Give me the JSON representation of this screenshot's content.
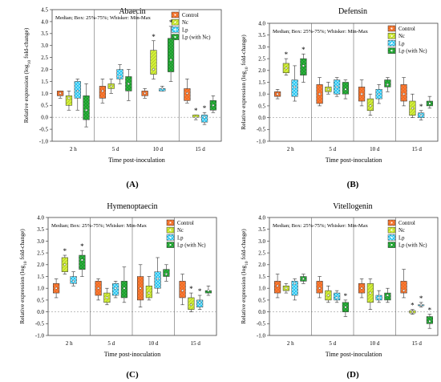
{
  "figure": {
    "background": "#ffffff"
  },
  "chart_data": [
    {
      "type": "box",
      "panel_label": "(A)",
      "title": "Abaecin",
      "annotation": "Median; Box: 25%-75%; Whisker: Min-Max",
      "ylabel_main": "Relative expression (log",
      "ylabel_sub": "10",
      "ylabel_tail": " fold-change)",
      "xlabel": "Time post-inoculation",
      "ylim": [
        -1.0,
        4.5
      ],
      "yticks": [
        "-1.0",
        "-0.5",
        "0.0",
        "0.5",
        "1.0",
        "1.5",
        "2.0",
        "2.5",
        "3.0",
        "3.5",
        "4.0",
        "4.5"
      ],
      "categories": [
        "2 h",
        "5 d",
        "10 d",
        "15 d"
      ],
      "series": [
        {
          "name": "Control",
          "color": "#f26b21",
          "hatch": "dots",
          "boxes": [
            [
              0.8,
              0.9,
              1.0,
              1.1,
              1.1
            ],
            [
              0.6,
              0.8,
              1.1,
              1.3,
              1.6
            ],
            [
              0.8,
              0.9,
              1.0,
              1.1,
              1.2
            ],
            [
              0.6,
              0.7,
              1.0,
              1.2,
              1.6
            ]
          ],
          "sig": [
            false,
            false,
            false,
            false
          ]
        },
        {
          "name": "Nc",
          "color": "#d4f03c",
          "hatch": "diag",
          "boxes": [
            [
              0.3,
              0.5,
              0.8,
              0.9,
              1.1
            ],
            [
              1.0,
              1.2,
              1.3,
              1.4,
              1.6
            ],
            [
              1.6,
              1.8,
              2.0,
              2.8,
              3.2
            ],
            [
              -0.1,
              0.0,
              0.0,
              0.1,
              0.1
            ]
          ],
          "sig": [
            false,
            false,
            true,
            true
          ]
        },
        {
          "name": "Lp",
          "color": "#27c6f2",
          "hatch": "checker",
          "boxes": [
            [
              0.3,
              0.8,
              1.1,
              1.5,
              1.6
            ],
            [
              1.4,
              1.6,
              1.7,
              2.0,
              2.2
            ],
            [
              1.1,
              1.1,
              1.2,
              1.2,
              1.3
            ],
            [
              -0.3,
              -0.2,
              0.0,
              0.1,
              0.2
            ]
          ],
          "sig": [
            false,
            false,
            false,
            true
          ]
        },
        {
          "name": "Lp (with Nc)",
          "color": "#19a02a",
          "hatch": "dots",
          "boxes": [
            [
              -0.4,
              -0.1,
              0.3,
              0.9,
              1.4
            ],
            [
              0.7,
              1.1,
              1.4,
              1.7,
              2.0
            ],
            [
              1.5,
              1.9,
              2.4,
              3.3,
              3.8
            ],
            [
              0.2,
              0.3,
              0.5,
              0.7,
              0.9
            ]
          ],
          "sig": [
            false,
            false,
            true,
            false
          ]
        }
      ]
    },
    {
      "type": "box",
      "panel_label": "(B)",
      "title": "Defensin",
      "annotation": "Median; Box: 25%-75%; Whisker: Min-Max",
      "ylabel_main": "Relative expression (log",
      "ylabel_sub": "10",
      "ylabel_tail": " fold-change)",
      "xlabel": "Time post-inoculation",
      "ylim": [
        -1.0,
        4.0
      ],
      "yticks": [
        "-1.0",
        "-0.5",
        "0.0",
        "0.5",
        "1.0",
        "1.5",
        "2.0",
        "2.5",
        "3.0",
        "3.5",
        "4.0"
      ],
      "categories": [
        "2 h",
        "5 d",
        "10 d",
        "15 d"
      ],
      "series": [
        {
          "name": "Control",
          "color": "#f26b21",
          "hatch": "dots",
          "boxes": [
            [
              0.8,
              0.9,
              1.0,
              1.1,
              1.2
            ],
            [
              0.5,
              0.6,
              1.0,
              1.4,
              1.7
            ],
            [
              0.5,
              0.7,
              1.0,
              1.3,
              1.6
            ],
            [
              0.5,
              0.7,
              1.0,
              1.4,
              1.7
            ]
          ],
          "sig": [
            false,
            false,
            false,
            false
          ]
        },
        {
          "name": "Nc",
          "color": "#d4f03c",
          "hatch": "diag",
          "boxes": [
            [
              1.8,
              1.9,
              2.1,
              2.3,
              2.5
            ],
            [
              1.0,
              1.1,
              1.2,
              1.3,
              1.5
            ],
            [
              0.1,
              0.3,
              0.5,
              0.8,
              1.0
            ],
            [
              0.0,
              0.1,
              0.4,
              0.7,
              1.0
            ]
          ],
          "sig": [
            true,
            false,
            false,
            false
          ]
        },
        {
          "name": "Lp",
          "color": "#27c6f2",
          "hatch": "checker",
          "boxes": [
            [
              0.7,
              0.9,
              1.3,
              1.6,
              2.2
            ],
            [
              0.9,
              1.0,
              1.3,
              1.6,
              1.7
            ],
            [
              0.6,
              0.8,
              1.0,
              1.2,
              1.4
            ],
            [
              -0.1,
              0.0,
              0.1,
              0.2,
              0.3
            ]
          ],
          "sig": [
            false,
            false,
            false,
            true
          ]
        },
        {
          "name": "Lp (with Nc)",
          "color": "#19a02a",
          "hatch": "dots",
          "boxes": [
            [
              1.5,
              1.8,
              2.2,
              2.5,
              2.7
            ],
            [
              0.8,
              1.0,
              1.2,
              1.5,
              1.6
            ],
            [
              1.1,
              1.3,
              1.4,
              1.6,
              1.7
            ],
            [
              0.4,
              0.5,
              0.6,
              0.7,
              0.9
            ]
          ],
          "sig": [
            true,
            false,
            false,
            false
          ]
        }
      ]
    },
    {
      "type": "box",
      "panel_label": "(C)",
      "title": "Hymenoptaecin",
      "annotation": "Median; Box: 25%-75%; Whisker: Min-Max",
      "ylabel_main": "Relative expression (log",
      "ylabel_sub": "10",
      "ylabel_tail": " fold-change)",
      "xlabel": "Time post-inoculation",
      "ylim": [
        -1.0,
        4.0
      ],
      "yticks": [
        "-1.0",
        "-0.5",
        "0.0",
        "0.5",
        "1.0",
        "1.5",
        "2.0",
        "2.5",
        "3.0",
        "3.5",
        "4.0"
      ],
      "categories": [
        "2 h",
        "5 d",
        "10 d",
        "15 d"
      ],
      "series": [
        {
          "name": "Control",
          "color": "#f26b21",
          "hatch": "dots",
          "boxes": [
            [
              0.6,
              0.8,
              1.0,
              1.2,
              1.4
            ],
            [
              0.5,
              0.7,
              1.0,
              1.3,
              1.4
            ],
            [
              0.2,
              0.5,
              1.0,
              1.5,
              2.0
            ],
            [
              0.3,
              0.6,
              0.9,
              1.3,
              1.6
            ]
          ],
          "sig": [
            false,
            false,
            false,
            false
          ]
        },
        {
          "name": "Nc",
          "color": "#d4f03c",
          "hatch": "diag",
          "boxes": [
            [
              1.6,
              1.7,
              2.0,
              2.3,
              2.4
            ],
            [
              0.3,
              0.4,
              0.6,
              0.8,
              1.0
            ],
            [
              0.5,
              0.6,
              0.8,
              1.1,
              1.5
            ],
            [
              0.0,
              0.1,
              0.3,
              0.6,
              0.8
            ]
          ],
          "sig": [
            true,
            false,
            false,
            true
          ]
        },
        {
          "name": "Lp",
          "color": "#27c6f2",
          "hatch": "checker",
          "boxes": [
            [
              1.1,
              1.2,
              1.3,
              1.5,
              1.7
            ],
            [
              0.6,
              0.7,
              1.0,
              1.2,
              1.3
            ],
            [
              0.8,
              1.0,
              1.4,
              1.7,
              2.3
            ],
            [
              0.1,
              0.2,
              0.4,
              0.5,
              0.7
            ]
          ],
          "sig": [
            false,
            false,
            false,
            true
          ]
        },
        {
          "name": "Lp (with Nc)",
          "color": "#19a02a",
          "hatch": "dots",
          "boxes": [
            [
              1.5,
              1.8,
              2.2,
              2.4,
              2.6
            ],
            [
              0.4,
              0.6,
              1.0,
              1.3,
              1.9
            ],
            [
              1.3,
              1.5,
              1.6,
              1.8,
              2.0
            ],
            [
              0.7,
              0.8,
              0.9,
              0.9,
              1.1
            ]
          ],
          "sig": [
            true,
            false,
            false,
            false
          ]
        }
      ]
    },
    {
      "type": "box",
      "panel_label": "(D)",
      "title": "Vitellogenin",
      "annotation": "Median; Box: 25%-75%; Whisker: Min-Max",
      "ylabel_main": "Relative expression (log",
      "ylabel_sub": "10",
      "ylabel_tail": " fold-change)",
      "xlabel": "Time post-inoculation",
      "ylim": [
        -1.0,
        4.0
      ],
      "yticks": [
        "-1.0",
        "-0.5",
        "0.0",
        "0.5",
        "1.0",
        "1.5",
        "2.0",
        "2.5",
        "3.0",
        "3.5",
        "4.0"
      ],
      "categories": [
        "2 h",
        "5 d",
        "10 d",
        "15 d"
      ],
      "series": [
        {
          "name": "Control",
          "color": "#f26b21",
          "hatch": "dots",
          "boxes": [
            [
              0.6,
              0.8,
              1.1,
              1.3,
              1.6
            ],
            [
              0.6,
              0.8,
              1.0,
              1.3,
              1.5
            ],
            [
              0.6,
              0.8,
              1.0,
              1.2,
              1.4
            ],
            [
              0.6,
              0.8,
              0.9,
              1.3,
              1.8
            ]
          ],
          "sig": [
            false,
            false,
            false,
            false
          ]
        },
        {
          "name": "Nc",
          "color": "#d4f03c",
          "hatch": "diag",
          "boxes": [
            [
              0.8,
              0.9,
              1.0,
              1.1,
              1.2
            ],
            [
              0.4,
              0.5,
              0.7,
              0.9,
              1.1
            ],
            [
              0.1,
              0.4,
              0.8,
              1.2,
              1.4
            ],
            [
              -0.1,
              -0.05,
              0.0,
              0.05,
              0.1
            ]
          ],
          "sig": [
            false,
            false,
            false,
            true
          ]
        },
        {
          "name": "Lp",
          "color": "#27c6f2",
          "hatch": "checker",
          "boxes": [
            [
              0.5,
              0.7,
              1.2,
              1.3,
              1.4
            ],
            [
              0.4,
              0.5,
              0.6,
              0.8,
              0.9
            ],
            [
              0.4,
              0.5,
              0.6,
              0.7,
              0.9
            ],
            [
              0.2,
              0.3,
              0.3,
              0.3,
              0.4
            ]
          ],
          "sig": [
            false,
            false,
            false,
            true
          ]
        },
        {
          "name": "Lp (with Nc)",
          "color": "#19a02a",
          "hatch": "dots",
          "boxes": [
            [
              1.2,
              1.3,
              1.4,
              1.5,
              1.6
            ],
            [
              -0.2,
              0.0,
              0.2,
              0.4,
              0.5
            ],
            [
              0.4,
              0.5,
              0.7,
              0.8,
              1.0
            ],
            [
              -0.7,
              -0.5,
              -0.4,
              -0.2,
              -0.1
            ]
          ],
          "sig": [
            false,
            true,
            false,
            true
          ]
        }
      ]
    }
  ]
}
